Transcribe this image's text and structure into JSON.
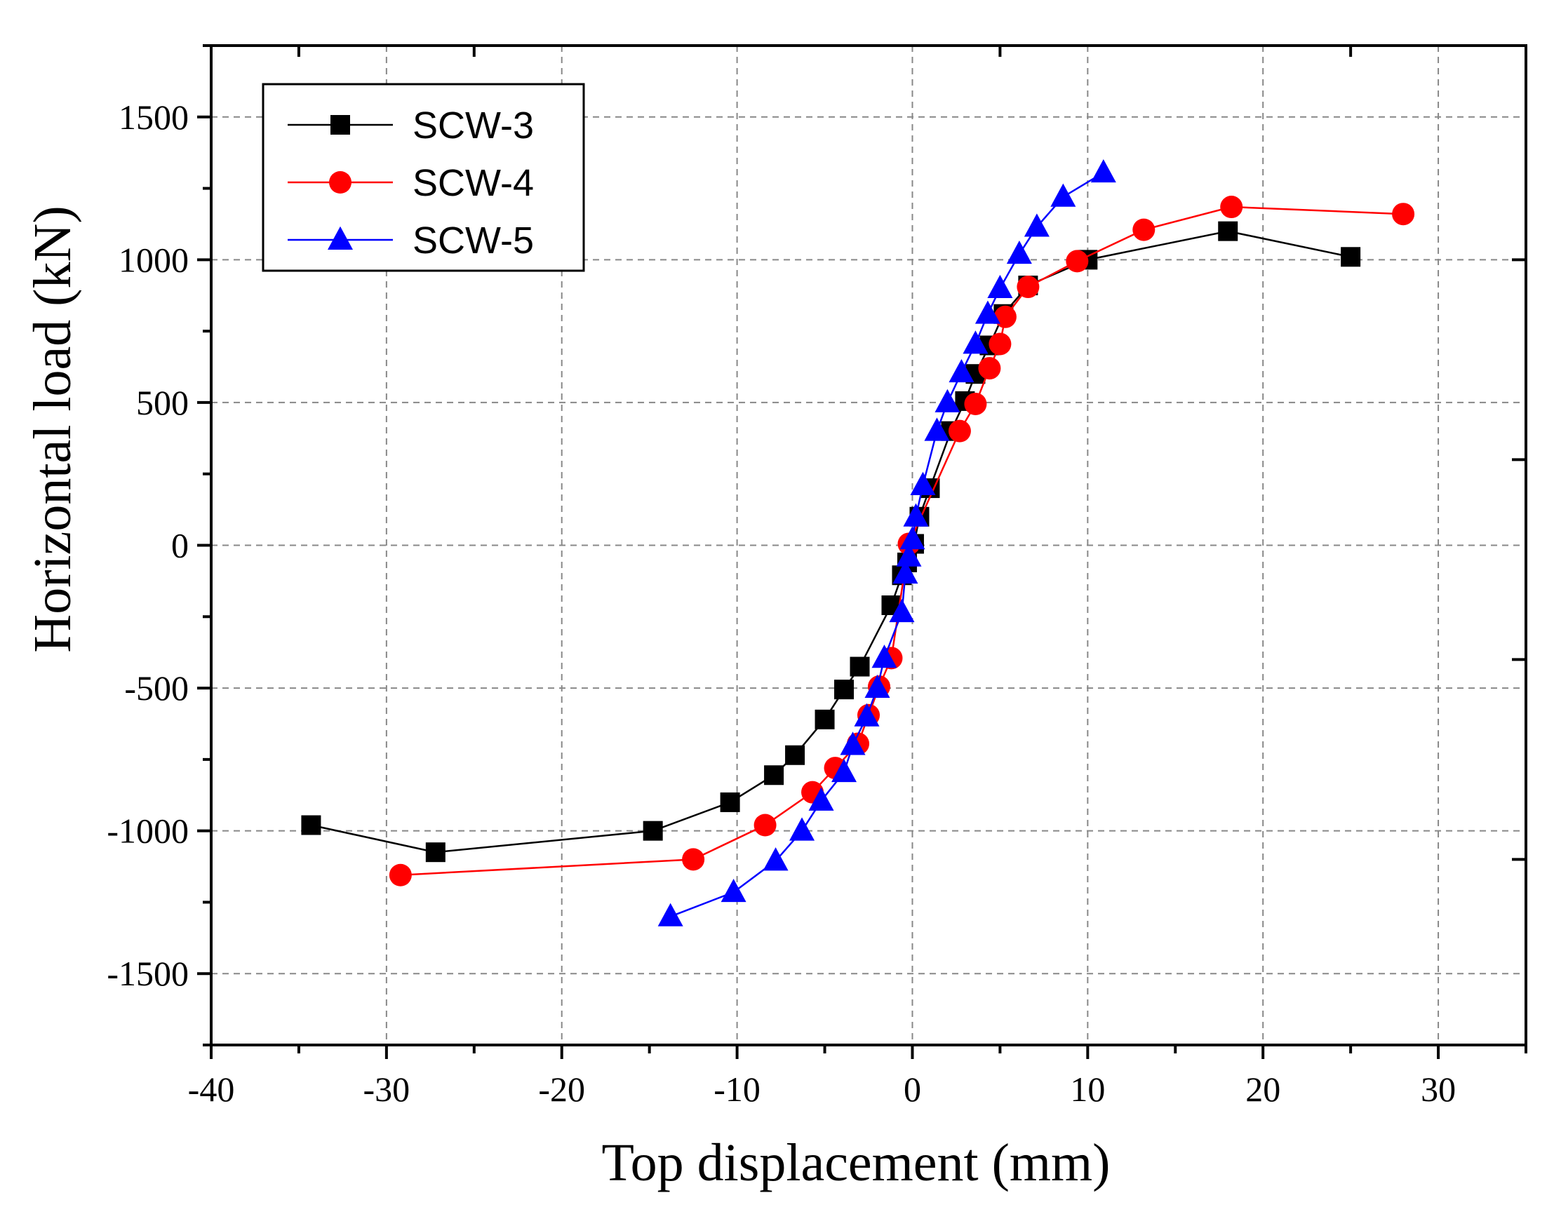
{
  "chart_data": {
    "type": "line",
    "title": "",
    "xlabel": "Top displacement (mm)",
    "ylabel": "Horizontal load (kN)",
    "xlim": [
      -40,
      35
    ],
    "ylim": [
      -1750,
      1750
    ],
    "xticks": [
      -40,
      -30,
      -20,
      -10,
      0,
      10,
      20,
      30
    ],
    "xtick_labels": [
      "-40",
      "-30",
      "-20",
      "-10",
      "0",
      "10",
      "20",
      "30"
    ],
    "yticks": [
      -1500,
      -1000,
      -500,
      0,
      500,
      1000,
      1500
    ],
    "ytick_labels": [
      "-1500",
      "-1000",
      "-500",
      "0",
      "500",
      "1000",
      "1500"
    ],
    "grid": true,
    "legend_position": "top-left",
    "series": [
      {
        "name": "SCW-3",
        "color": "#000000",
        "marker": "square",
        "x": [
          -34.3,
          -27.2,
          -14.8,
          -10.4,
          -7.9,
          -6.7,
          -5.0,
          -3.9,
          -3.0,
          -1.2,
          -0.6,
          -0.3,
          0.1,
          0.4,
          1.0,
          2.2,
          3.0,
          3.6,
          4.4,
          5.2,
          6.6,
          10.0,
          18.0,
          25.0
        ],
        "y": [
          -980,
          -1075,
          -1000,
          -900,
          -805,
          -735,
          -610,
          -505,
          -425,
          -210,
          -105,
          -60,
          5,
          100,
          200,
          400,
          505,
          600,
          700,
          810,
          910,
          1000,
          1100,
          1010
        ]
      },
      {
        "name": "SCW-4",
        "color": "#ff0000",
        "marker": "circle",
        "x": [
          -29.2,
          -12.5,
          -8.4,
          -5.7,
          -4.4,
          -3.1,
          -2.5,
          -1.9,
          -1.2,
          -0.2,
          2.7,
          3.6,
          4.4,
          5.0,
          5.3,
          6.6,
          9.4,
          13.2,
          18.2,
          28.0
        ],
        "y": [
          -1155,
          -1100,
          -980,
          -865,
          -780,
          -695,
          -595,
          -495,
          -395,
          5,
          400,
          495,
          620,
          705,
          800,
          905,
          995,
          1105,
          1185,
          1160
        ]
      },
      {
        "name": "SCW-5",
        "color": "#0000ff",
        "marker": "triangle",
        "x": [
          -13.8,
          -10.2,
          -7.8,
          -6.3,
          -5.2,
          -3.9,
          -3.4,
          -2.6,
          -2.0,
          -1.6,
          -0.6,
          -0.4,
          -0.2,
          0.0,
          0.2,
          0.6,
          1.4,
          2.0,
          2.8,
          3.6,
          4.3,
          5.0,
          6.1,
          7.1,
          8.6,
          10.9
        ],
        "y": [
          -1300,
          -1215,
          -1105,
          -1000,
          -895,
          -795,
          -700,
          -600,
          -500,
          -395,
          -235,
          -100,
          -40,
          20,
          100,
          210,
          400,
          500,
          605,
          705,
          810,
          900,
          1020,
          1115,
          1220,
          1305
        ]
      }
    ]
  }
}
